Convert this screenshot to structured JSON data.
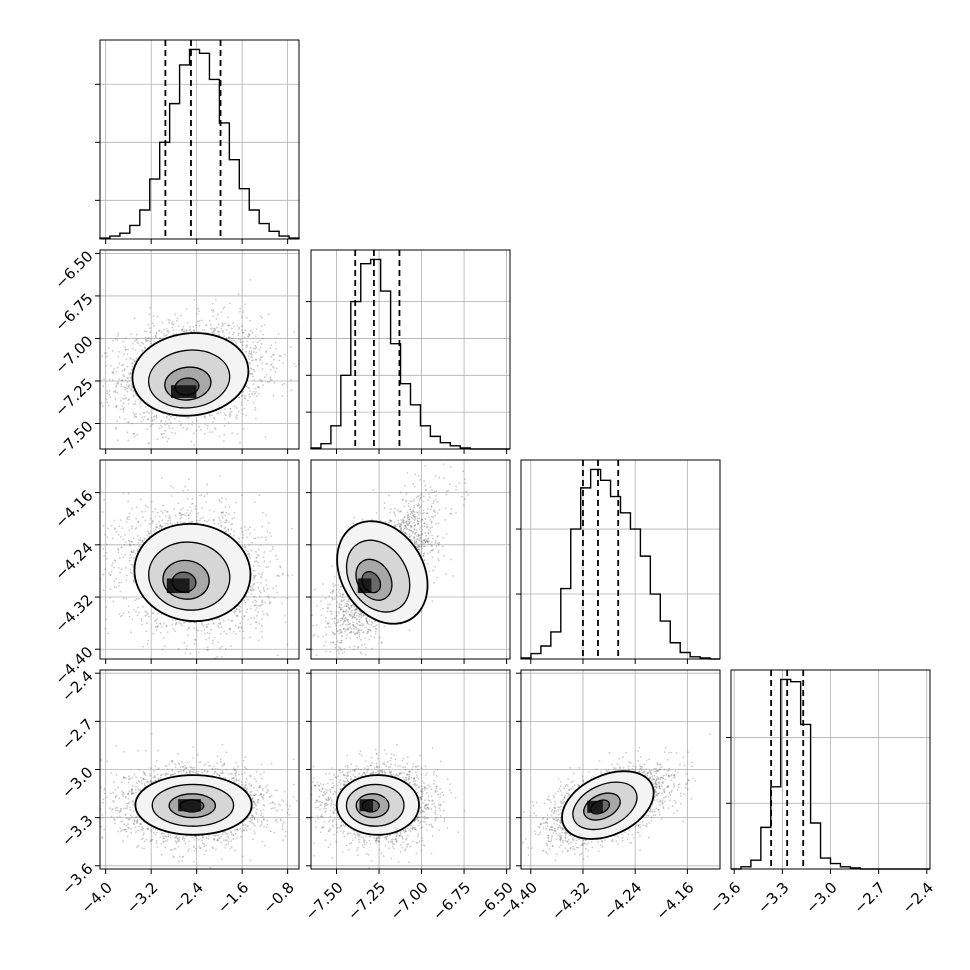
{
  "chart_data": {
    "type": "corner",
    "grid": true,
    "quantile_lines": "dashed",
    "style": {
      "hist_color": "#000000",
      "grid_color": "#b0b0b0",
      "scatter_color": "#555555",
      "axes_color": "#000000"
    },
    "params": [
      {
        "index": 0,
        "range": [
          -4.1,
          -0.6
        ],
        "ticks": [
          -4.0,
          -3.2,
          -2.4,
          -1.6,
          -0.8
        ],
        "tick_labels": [
          "−4.0",
          "−3.2",
          "−2.4",
          "−1.6",
          "−0.8"
        ],
        "quantiles": [
          -2.95,
          -2.5,
          -1.98
        ]
      },
      {
        "index": 1,
        "range": [
          -7.65,
          -6.48
        ],
        "ticks": [
          -7.5,
          -7.25,
          -7.0,
          -6.75,
          -6.5
        ],
        "tick_labels": [
          "−7.50",
          "−7.25",
          "−7.00",
          "−6.75",
          "−6.50"
        ],
        "quantiles": [
          -7.39,
          -7.28,
          -7.13
        ]
      },
      {
        "index": 2,
        "range": [
          -4.415,
          -4.11
        ],
        "ticks": [
          -4.4,
          -4.32,
          -4.24,
          -4.16
        ],
        "tick_labels": [
          "−4.40",
          "−4.32",
          "−4.24",
          "−4.16"
        ],
        "quantiles": [
          -4.32,
          -4.297,
          -4.266
        ]
      },
      {
        "index": 3,
        "range": [
          -3.62,
          -2.38
        ],
        "ticks": [
          -3.6,
          -3.3,
          -3.0,
          -2.7,
          -2.4
        ],
        "tick_labels": [
          "−3.6",
          "−3.3",
          "−3.0",
          "−2.7",
          "−2.4"
        ],
        "quantiles": [
          -3.37,
          -3.27,
          -3.17
        ]
      }
    ],
    "histograms": [
      {
        "param": 0,
        "bin_start": -4.1,
        "bin_width": 0.175,
        "counts": [
          1,
          3,
          6,
          14,
          30,
          62,
          100,
          140,
          180,
          196,
          192,
          165,
          120,
          82,
          52,
          30,
          16,
          8,
          3,
          1
        ],
        "y_ticks": [
          40,
          100,
          160
        ]
      },
      {
        "param": 1,
        "bin_start": -7.65,
        "bin_width": 0.0585,
        "counts": [
          1,
          5,
          22,
          70,
          140,
          176,
          180,
          150,
          100,
          62,
          42,
          22,
          12,
          6,
          3,
          1,
          0,
          0,
          0,
          0
        ],
        "y_ticks": [
          35,
          70,
          105,
          140
        ]
      },
      {
        "param": 2,
        "bin_start": -4.415,
        "bin_width": 0.01525,
        "counts": [
          1,
          5,
          12,
          25,
          65,
          120,
          158,
          175,
          165,
          150,
          135,
          120,
          95,
          60,
          35,
          15,
          6,
          2,
          1,
          0
        ],
        "y_ticks": [
          60,
          120
        ]
      },
      {
        "param": 3,
        "bin_start": -3.62,
        "bin_width": 0.062,
        "counts": [
          0,
          2,
          8,
          38,
          75,
          173,
          171,
          132,
          42,
          10,
          5,
          2,
          1,
          0,
          0,
          0,
          0,
          0,
          0,
          0
        ],
        "y_ticks": [
          60,
          120
        ]
      }
    ],
    "pairs": [
      {
        "x": 0,
        "y": 1,
        "mean": [
          -2.5,
          -7.2
        ],
        "sd": [
          0.55,
          0.13
        ],
        "rho": 0.15,
        "peak": [
          -2.6,
          -7.32
        ],
        "peak_sd": [
          0.28,
          0.05
        ]
      },
      {
        "x": 0,
        "y": 2,
        "mean": [
          -2.45,
          -4.28
        ],
        "sd": [
          0.55,
          0.04
        ],
        "rho": -0.15,
        "peak": [
          -2.7,
          -4.305
        ],
        "peak_sd": [
          0.25,
          0.015
        ]
      },
      {
        "x": 1,
        "y": 2,
        "mean": [
          -7.22,
          -4.28
        ],
        "sd": [
          0.13,
          0.045
        ],
        "rho": 0.7,
        "peak": [
          -7.33,
          -4.305
        ],
        "peak_sd": [
          0.05,
          0.015
        ]
      },
      {
        "x": 0,
        "y": 3,
        "mean": [
          -2.45,
          -3.22
        ],
        "sd": [
          0.55,
          0.1
        ],
        "rho": 0.0,
        "peak": [
          -2.5,
          -3.23
        ],
        "peak_sd": [
          0.25,
          0.05
        ]
      },
      {
        "x": 1,
        "y": 3,
        "mean": [
          -7.25,
          -3.22
        ],
        "sd": [
          0.13,
          0.1
        ],
        "rho": 0.0,
        "peak": [
          -7.32,
          -3.23
        ],
        "peak_sd": [
          0.05,
          0.05
        ]
      },
      {
        "x": 2,
        "y": 3,
        "mean": [
          -4.28,
          -3.22
        ],
        "sd": [
          0.04,
          0.1
        ],
        "rho": 0.55,
        "peak": [
          -4.3,
          -3.24
        ],
        "peak_sd": [
          0.015,
          0.05
        ]
      }
    ]
  }
}
